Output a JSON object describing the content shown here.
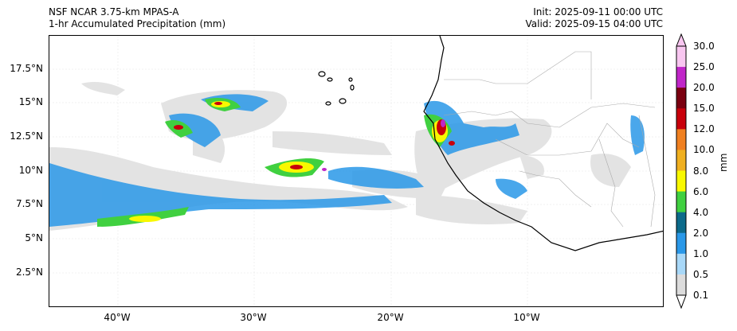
{
  "title": {
    "model": "NSF NCAR 3.75-km MPAS-A",
    "field": "1-hr Accumulated Precipitation (mm)",
    "init": "Init: 2025-09-11 00:00 UTC",
    "valid": "Valid: 2025-09-15 04:00 UTC"
  },
  "axes": {
    "y_ticks": [
      "17.5°N",
      "15°N",
      "12.5°N",
      "10°N",
      "7.5°N",
      "5°N",
      "2.5°N"
    ],
    "x_ticks": [
      "40°W",
      "30°W",
      "20°W",
      "10°W"
    ]
  },
  "colorbar": {
    "label": "mm",
    "ticks": [
      "30.0",
      "25.0",
      "20.0",
      "15.0",
      "12.0",
      "10.0",
      "8.0",
      "6.0",
      "4.0",
      "2.0",
      "1.0",
      "0.5",
      "0.1"
    ],
    "colors": [
      "#f8c6f0",
      "#c026c8",
      "#7a0010",
      "#c8000b",
      "#f08020",
      "#f0b020",
      "#f8f800",
      "#40d040",
      "#0c6a8a",
      "#2a98e8",
      "#a8d8f8",
      "#dcdcdc"
    ]
  },
  "map": {
    "region": "Tropical Atlantic and West Africa",
    "features": [
      "coastline",
      "country-borders",
      "precipitation-field",
      "cape-verde-islands"
    ]
  }
}
